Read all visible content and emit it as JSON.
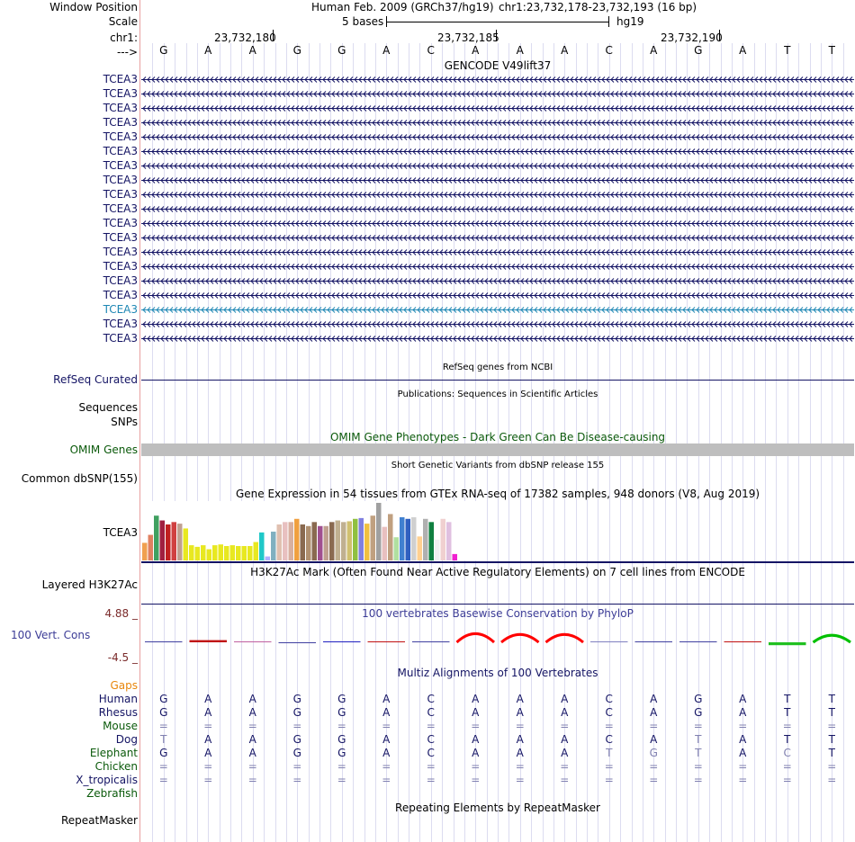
{
  "header": {
    "window_position_label": "Window Position",
    "assembly": "Human Feb. 2009 (GRCh37/hg19)",
    "position": "chr1:23,732,178-23,732,193 (16 bp)",
    "scale_label": "Scale",
    "scale_text": "5 bases",
    "db_label": "hg19",
    "chrom_label": "chr1:",
    "strand_label": "--->",
    "ticks": [
      "23,732,180",
      "23,732,185",
      "23,732,190"
    ],
    "bases": [
      "G",
      "A",
      "A",
      "G",
      "G",
      "A",
      "C",
      "A",
      "A",
      "A",
      "C",
      "A",
      "G",
      "A",
      "T",
      "T"
    ]
  },
  "gencode": {
    "title": "GENCODE V49lift37",
    "gene_label": "TCEA3",
    "row_count": 19,
    "highlight_row": 16
  },
  "tracks": {
    "refseq_title": "RefSeq genes from NCBI",
    "refseq_label": "RefSeq Curated",
    "pubs_title": "Publications: Sequences in Scientific Articles",
    "sequences_label": "Sequences",
    "snps_label": "SNPs",
    "omim_title": "OMIM Gene Phenotypes - Dark Green Can Be Disease-causing",
    "omim_label": "OMIM Genes",
    "dbsnp_title": "Short Genetic Variants from dbSNP release 155",
    "dbsnp_label": "Common dbSNP(155)",
    "gtex_title": "Gene Expression in 54 tissues from GTEx RNA-seq of 17382 samples, 948 donors (V8, Aug 2019)",
    "gtex_gene": "TCEA3",
    "h3k27_title": "H3K27Ac Mark (Often Found Near Active Regulatory Elements) on 7 cell lines from ENCODE",
    "h3k27_label": "Layered H3K27Ac",
    "phylop_title": "100 vertebrates Basewise Conservation by PhyloP",
    "phylop_label": "100 Vert. Cons",
    "phylop_max": "4.88 _",
    "phylop_min": "-4.5 _",
    "multiz_title": "Multiz Alignments of 100 Vertebrates",
    "gaps_label": "Gaps",
    "repeat_title": "Repeating Elements by RepeatMasker",
    "repeat_label": "RepeatMasker"
  },
  "colors": {
    "navy": "#141464",
    "omim_green": "#0b5a0b",
    "gaps_orange": "#e8860c",
    "highlight_transcript": "#1e87b4"
  },
  "alignment": [
    {
      "species": "Human",
      "color": "#141464",
      "bases": [
        "G",
        "A",
        "A",
        "G",
        "G",
        "A",
        "C",
        "A",
        "A",
        "A",
        "C",
        "A",
        "G",
        "A",
        "T",
        "T"
      ],
      "faint": []
    },
    {
      "species": "Rhesus",
      "color": "#141464",
      "bases": [
        "G",
        "A",
        "A",
        "G",
        "G",
        "A",
        "C",
        "A",
        "A",
        "A",
        "C",
        "A",
        "G",
        "A",
        "T",
        "T"
      ],
      "faint": []
    },
    {
      "species": "Mouse",
      "color": "#0b5a0b",
      "bases": [
        "=",
        "=",
        "=",
        "=",
        "=",
        "=",
        "=",
        "=",
        "=",
        "=",
        "=",
        "=",
        "=",
        "=",
        "=",
        "="
      ],
      "faint": []
    },
    {
      "species": "Dog",
      "color": "#141464",
      "bases": [
        "T",
        "A",
        "A",
        "G",
        "G",
        "A",
        "C",
        "A",
        "A",
        "A",
        "C",
        "A",
        "T",
        "A",
        "T",
        "T"
      ],
      "faint": [
        0,
        12
      ]
    },
    {
      "species": "Elephant",
      "color": "#0b5a0b",
      "bases": [
        "G",
        "A",
        "A",
        "G",
        "G",
        "A",
        "C",
        "A",
        "A",
        "A",
        "T",
        "G",
        "T",
        "A",
        "C",
        "T"
      ],
      "faint": [
        10,
        11,
        12,
        14
      ]
    },
    {
      "species": "Chicken",
      "color": "#0b5a0b",
      "bases": [
        "=",
        "=",
        "=",
        "=",
        "=",
        "=",
        "=",
        "=",
        "=",
        "=",
        "=",
        "=",
        "=",
        "=",
        "=",
        "="
      ],
      "faint": []
    },
    {
      "species": "X_tropicalis",
      "color": "#141464",
      "bases": [
        "=",
        "=",
        "=",
        "=",
        "=",
        "=",
        "=",
        "=",
        "=",
        "=",
        "=",
        "=",
        "=",
        "=",
        "=",
        "="
      ],
      "faint": []
    },
    {
      "species": "Zebrafish",
      "color": "#0b5a0b",
      "bases": [],
      "faint": []
    }
  ],
  "gtex_chart_data": {
    "type": "bar",
    "title": "Gene Expression in 54 tissues from GTEx RNA-seq of 17382 samples, 948 donors (V8, Aug 2019)",
    "values": [
      22,
      32,
      56,
      50,
      45,
      48,
      46,
      40,
      19,
      17,
      19,
      14,
      19,
      20,
      18,
      19,
      18,
      18,
      18,
      23,
      35,
      5,
      36,
      45,
      48,
      48,
      52,
      45,
      43,
      48,
      43,
      43,
      48,
      50,
      48,
      49,
      52,
      53,
      46,
      56,
      72,
      42,
      58,
      29,
      54,
      52,
      54,
      30,
      52,
      48,
      26,
      52,
      48,
      8
    ],
    "colors": [
      "#f0a050",
      "#e08060",
      "#40a060",
      "#a02040",
      "#c02020",
      "#d04040",
      "#c0a090",
      "#e8e820",
      "#e8e820",
      "#e8e820",
      "#e8e820",
      "#e8e820",
      "#e8e820",
      "#e8e820",
      "#e8e820",
      "#e8e820",
      "#e8e820",
      "#e8e820",
      "#e8e820",
      "#e8e820",
      "#20c8c8",
      "#b0b0ff",
      "#80b0c0",
      "#e0c0b0",
      "#e8c0c0",
      "#d8b0a0",
      "#f0a040",
      "#8a6a50",
      "#b09070",
      "#8a6a50",
      "#a05090",
      "#c0a090",
      "#8a6a50",
      "#c0b090",
      "#c0b090",
      "#d0c070",
      "#90c040",
      "#8080e0",
      "#f0c040",
      "#c0a080",
      "#a0a0a0",
      "#e8c0c0",
      "#c0a080",
      "#b0e0a0",
      "#4080d0",
      "#3060c0",
      "#d0d0d0",
      "#ffd090",
      "#b0b0b0",
      "#108040",
      "#f0f0f0",
      "#f0d0d0",
      "#e0c0e0",
      "#f020d0"
    ]
  },
  "phylop_chart_data": {
    "type": "bar",
    "ylim": [
      -4.5,
      4.88
    ],
    "values": [
      0.1,
      0.6,
      0.1,
      -0.2,
      0.2,
      0.1,
      0.2,
      2.6,
      2.2,
      2.2,
      0.1,
      0.1,
      0.1,
      0.1,
      -0.8,
      1.8
    ],
    "colors": [
      "#4040a0",
      "#c01010",
      "#c060a0",
      "#4040a0",
      "#2020c0",
      "#c01010",
      "#4040a0",
      "#ff0000",
      "#ff0000",
      "#ff0000",
      "#8080c0",
      "#4040a0",
      "#4040a0",
      "#c01010",
      "#20c020",
      "#00c000"
    ]
  }
}
